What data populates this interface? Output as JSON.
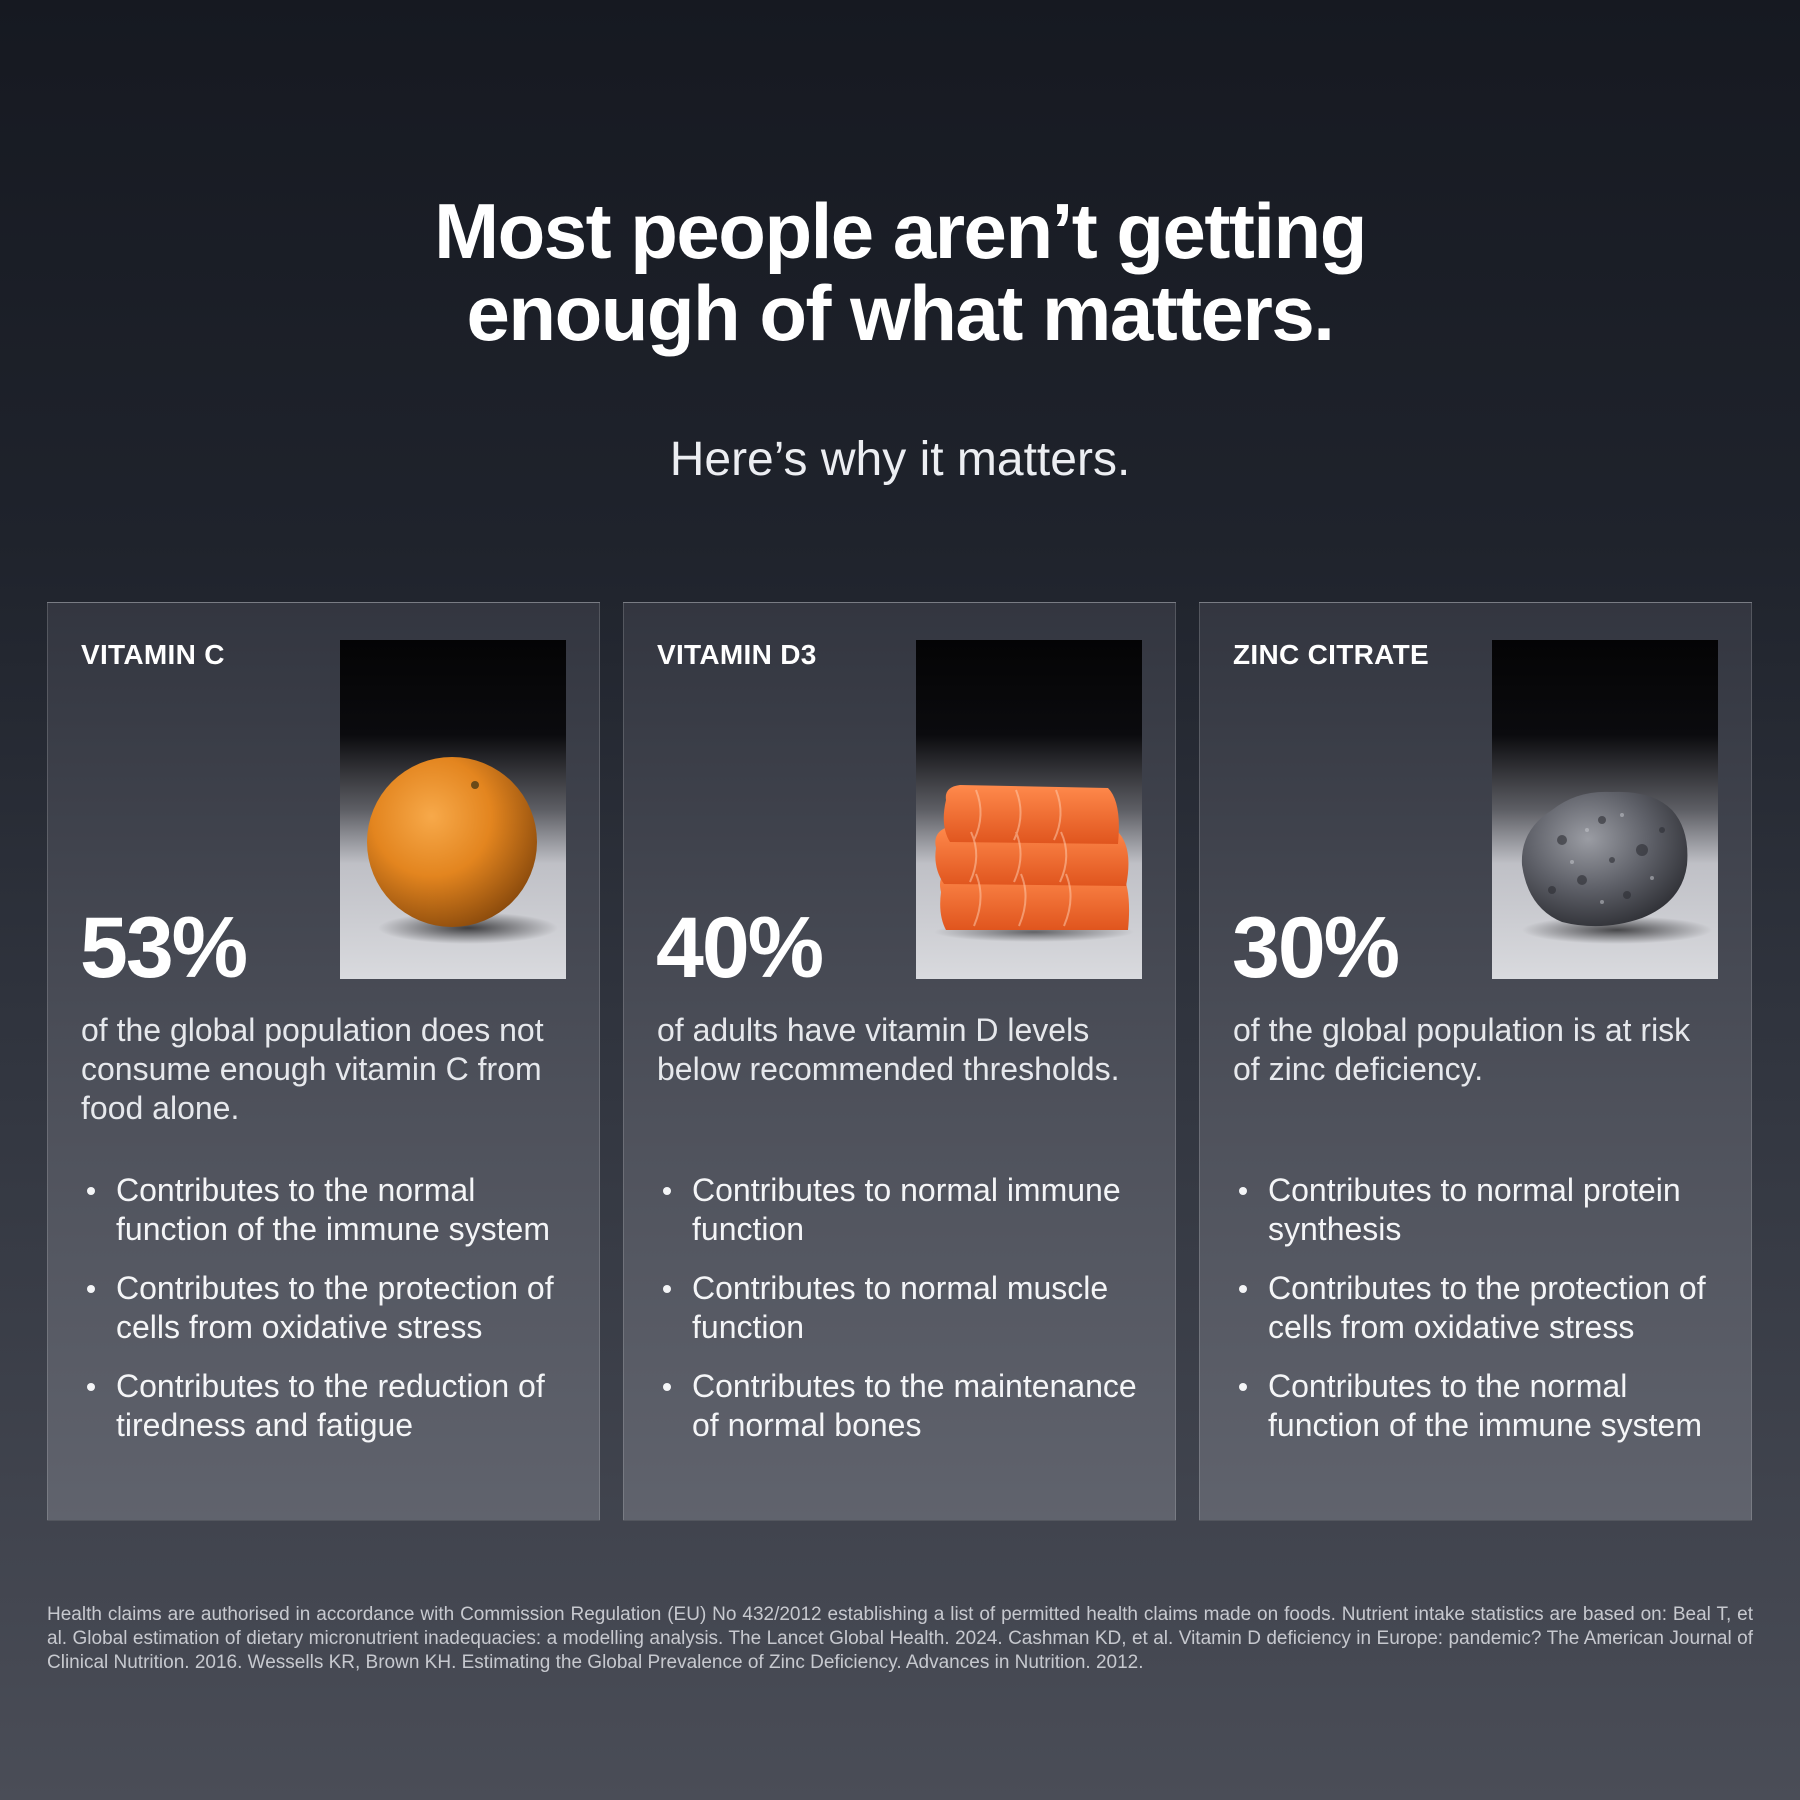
{
  "headline": {
    "line1": "Most people aren’t getting",
    "line2": "enough of what matters."
  },
  "subheadline": "Here’s why it matters.",
  "cards": [
    {
      "title": "VITAMIN C",
      "image": "orange-photo",
      "percent": "53%",
      "description": "of the global population does not consume enough vitamin C from food alone.",
      "benefits": [
        "Contributes to the normal function of the immune system",
        "Contributes to the protection of cells from oxidative stress",
        "Contributes to the reduction of tiredness and fatigue"
      ]
    },
    {
      "title": "VITAMIN D3",
      "image": "salmon-photo",
      "percent": "40%",
      "description": "of adults have vitamin D levels below recommended thresholds.",
      "benefits": [
        "Contributes to normal immune function",
        "Contributes to normal muscle function",
        "Contributes to the maintenance of normal bones"
      ]
    },
    {
      "title": "ZINC CITRATE",
      "image": "rock-photo",
      "percent": "30%",
      "description": "of the global population is at risk of zinc deficiency.",
      "benefits": [
        "Contributes to normal protein synthesis",
        "Contributes to the protection of cells from oxidative stress",
        "Contributes to the normal function of the immune system"
      ]
    }
  ],
  "footnote": "Health claims are authorised in accordance with Commission Regulation (EU) No 432/2012 establishing a list of permitted health claims made on foods. Nutrient intake statistics are based on: Beal T, et al. Global estimation of dietary micronutrient inadequacies: a modelling analysis. The Lancet Global Health. 2024. Cashman KD, et al. Vitamin D deficiency in Europe: pandemic? The American Journal of Clinical Nutrition. 2016. Wessells KR, Brown KH. Estimating the Global Prevalence of Zinc Deficiency. Advances in Nutrition. 2012.",
  "colors": {
    "background_top": "#161921",
    "background_bottom": "#4a4d57",
    "card_top": "#333640",
    "card_bottom": "#60636d",
    "text": "#ffffff"
  }
}
